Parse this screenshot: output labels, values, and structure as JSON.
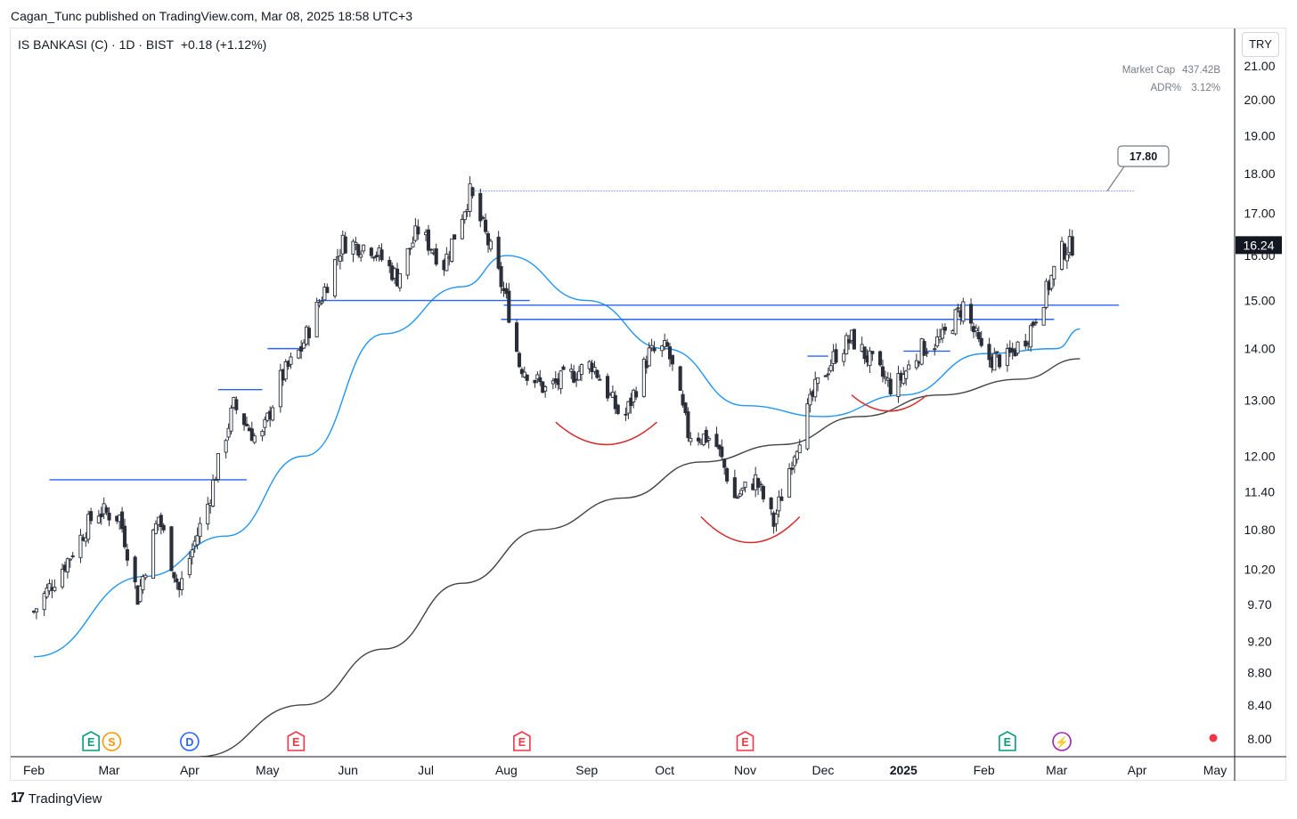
{
  "publisher_line": "Cagan_Tunc published on TradingView.com, Mar 08, 2025 18:58 UTC+3",
  "symbol": {
    "name": "IS BANKASI (C) · 1D · BIST",
    "change": "+0.18 (+1.12%)"
  },
  "stats": {
    "market_cap_label": "Market Cap",
    "market_cap_value": "437.42B",
    "adr_label": "ADR%",
    "adr_value": "3.12%"
  },
  "currency": "TRY",
  "footer_brand": "TradingView",
  "colors": {
    "up": "#ffffff",
    "down": "#2a2e39",
    "ma50": "#2196f3",
    "ma200": "#444444",
    "level": "#2962ff",
    "arc": "#d32f2f"
  },
  "chart_data": {
    "type": "candlestick",
    "symbol": "IS BANKASI (C)",
    "interval": "1D",
    "exchange": "BIST",
    "y_scale": "log",
    "y_ticks": [
      "21.00",
      "20.00",
      "19.00",
      "18.00",
      "17.00",
      "16.00",
      "15.00",
      "14.00",
      "13.00",
      "12.00",
      "11.40",
      "10.80",
      "10.20",
      "9.70",
      "9.20",
      "8.80",
      "8.40",
      "8.00"
    ],
    "x_ticks": [
      "Feb",
      "Mar",
      "Apr",
      "May",
      "Jun",
      "Jul",
      "Aug",
      "Sep",
      "Oct",
      "Nov",
      "Dec",
      "2025",
      "Feb",
      "Mar",
      "Apr",
      "May"
    ],
    "x_range": [
      "2024-02-01",
      "2025-05-01"
    ],
    "last_price": "16.24",
    "target_label": "17.80",
    "target_price": 17.8,
    "close_path": [
      {
        "date": "2024-02-01",
        "close": 9.6
      },
      {
        "date": "2024-02-15",
        "close": 10.4
      },
      {
        "date": "2024-02-25",
        "close": 11.1
      },
      {
        "date": "2024-03-05",
        "close": 11.0
      },
      {
        "date": "2024-03-12",
        "close": 9.8
      },
      {
        "date": "2024-03-20",
        "close": 11.0
      },
      {
        "date": "2024-03-28",
        "close": 9.9
      },
      {
        "date": "2024-04-08",
        "close": 11.2
      },
      {
        "date": "2024-04-18",
        "close": 12.9
      },
      {
        "date": "2024-04-28",
        "close": 12.2
      },
      {
        "date": "2024-05-06",
        "close": 13.4
      },
      {
        "date": "2024-05-14",
        "close": 14.0
      },
      {
        "date": "2024-05-22",
        "close": 15.1
      },
      {
        "date": "2024-05-30",
        "close": 16.3
      },
      {
        "date": "2024-06-10",
        "close": 16.2
      },
      {
        "date": "2024-06-20",
        "close": 15.5
      },
      {
        "date": "2024-06-28",
        "close": 16.6
      },
      {
        "date": "2024-07-08",
        "close": 15.8
      },
      {
        "date": "2024-07-18",
        "close": 17.5
      },
      {
        "date": "2024-07-25",
        "close": 16.3
      },
      {
        "date": "2024-08-01",
        "close": 15.0
      },
      {
        "date": "2024-08-06",
        "close": 13.7
      },
      {
        "date": "2024-08-16",
        "close": 13.2
      },
      {
        "date": "2024-09-03",
        "close": 13.7
      },
      {
        "date": "2024-09-15",
        "close": 12.6
      },
      {
        "date": "2024-09-25",
        "close": 13.9
      },
      {
        "date": "2024-10-02",
        "close": 14.0
      },
      {
        "date": "2024-10-10",
        "close": 12.4
      },
      {
        "date": "2024-10-20",
        "close": 12.3
      },
      {
        "date": "2024-10-28",
        "close": 11.3
      },
      {
        "date": "2024-11-05",
        "close": 11.6
      },
      {
        "date": "2024-11-12",
        "close": 10.9
      },
      {
        "date": "2024-11-20",
        "close": 12.1
      },
      {
        "date": "2024-11-28",
        "close": 13.2
      },
      {
        "date": "2024-12-06",
        "close": 13.9
      },
      {
        "date": "2024-12-12",
        "close": 14.2
      },
      {
        "date": "2024-12-20",
        "close": 13.7
      },
      {
        "date": "2024-12-28",
        "close": 13.2
      },
      {
        "date": "2025-01-08",
        "close": 14.0
      },
      {
        "date": "2025-01-16",
        "close": 14.2
      },
      {
        "date": "2025-01-24",
        "close": 14.9
      },
      {
        "date": "2025-02-01",
        "close": 13.8
      },
      {
        "date": "2025-02-10",
        "close": 13.8
      },
      {
        "date": "2025-02-18",
        "close": 14.3
      },
      {
        "date": "2025-02-25",
        "close": 15.2
      },
      {
        "date": "2025-03-03",
        "close": 16.1
      },
      {
        "date": "2025-03-07",
        "close": 16.24
      }
    ],
    "ma_short": [
      {
        "date": "2024-02-01",
        "value": 9.0
      },
      {
        "date": "2024-03-15",
        "value": 10.1
      },
      {
        "date": "2024-04-15",
        "value": 10.7
      },
      {
        "date": "2024-05-15",
        "value": 12.0
      },
      {
        "date": "2024-06-15",
        "value": 14.3
      },
      {
        "date": "2024-07-15",
        "value": 15.3
      },
      {
        "date": "2024-08-01",
        "value": 16.0
      },
      {
        "date": "2024-09-01",
        "value": 15.0
      },
      {
        "date": "2024-10-01",
        "value": 14.0
      },
      {
        "date": "2024-11-01",
        "value": 12.9
      },
      {
        "date": "2024-12-01",
        "value": 12.7
      },
      {
        "date": "2025-01-01",
        "value": 13.1
      },
      {
        "date": "2025-02-01",
        "value": 13.9
      },
      {
        "date": "2025-03-01",
        "value": 14.0
      },
      {
        "date": "2025-03-10",
        "value": 14.4
      }
    ],
    "ma_long": [
      {
        "date": "2024-04-05",
        "value": 7.8
      },
      {
        "date": "2024-05-15",
        "value": 8.4
      },
      {
        "date": "2024-06-15",
        "value": 9.1
      },
      {
        "date": "2024-07-15",
        "value": 10.0
      },
      {
        "date": "2024-08-15",
        "value": 10.8
      },
      {
        "date": "2024-09-15",
        "value": 11.3
      },
      {
        "date": "2024-10-15",
        "value": 11.9
      },
      {
        "date": "2024-11-15",
        "value": 12.2
      },
      {
        "date": "2024-12-15",
        "value": 12.7
      },
      {
        "date": "2025-01-15",
        "value": 13.1
      },
      {
        "date": "2025-02-15",
        "value": 13.4
      },
      {
        "date": "2025-03-10",
        "value": 13.8
      }
    ],
    "levels": [
      {
        "from": "2024-02-07",
        "to": "2024-04-23",
        "price": 11.6
      },
      {
        "from": "2024-04-12",
        "to": "2024-04-29",
        "price": 13.2
      },
      {
        "from": "2024-05-01",
        "to": "2024-05-15",
        "price": 14.0
      },
      {
        "from": "2024-05-20",
        "to": "2024-08-10",
        "price": 15.0
      },
      {
        "from": "2024-07-31",
        "to": "2025-03-25",
        "price": 14.9
      },
      {
        "from": "2024-07-30",
        "to": "2025-02-28",
        "price": 14.6
      },
      {
        "from": "2024-11-25",
        "to": "2024-12-03",
        "price": 13.85
      },
      {
        "from": "2025-01-01",
        "to": "2025-01-19",
        "price": 13.95
      }
    ],
    "pattern_arcs": [
      {
        "from": "2024-08-20",
        "to": "2024-09-28",
        "depth": 12.2
      },
      {
        "from": "2024-10-15",
        "to": "2024-11-22",
        "depth": 10.6
      },
      {
        "from": "2024-12-12",
        "to": "2025-01-10",
        "depth": 12.8
      }
    ],
    "events": [
      {
        "date": "2024-02-23",
        "label": "E",
        "color": "#089981"
      },
      {
        "date": "2024-03-02",
        "label": "S",
        "color": "#ff9800"
      },
      {
        "date": "2024-04-01",
        "label": "D",
        "color": "#2962ff"
      },
      {
        "date": "2024-05-12",
        "label": "E",
        "color": "#f23645"
      },
      {
        "date": "2024-08-07",
        "label": "E",
        "color": "#f23645"
      },
      {
        "date": "2024-11-01",
        "label": "E",
        "color": "#f23645"
      },
      {
        "date": "2025-02-10",
        "label": "E",
        "color": "#089981"
      },
      {
        "date": "2025-03-03",
        "label": "⚡",
        "color": "#9c27b0"
      }
    ]
  }
}
